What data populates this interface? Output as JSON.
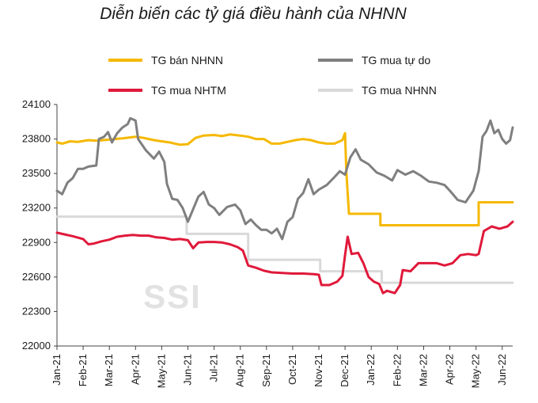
{
  "chart_data": {
    "type": "line",
    "title": "Diễn biến các tỷ giá điều hành của NHNN",
    "watermark": "SSI",
    "xlabel": "",
    "ylabel": "",
    "ylim": [
      22000,
      24100
    ],
    "yticks": [
      22000,
      22300,
      22600,
      22900,
      23200,
      23500,
      23800,
      24100
    ],
    "categories": [
      "Jan-21",
      "Feb-21",
      "Mar-21",
      "Apr-21",
      "May-21",
      "Jun-21",
      "Jul-21",
      "Aug-21",
      "Sep-21",
      "Oct-21",
      "Nov-21",
      "Dec-21",
      "Jan-22",
      "Feb-22",
      "Mar-22",
      "Apr-22",
      "May-22",
      "Jun-22"
    ],
    "legend": [
      {
        "name": "TG bán NHNN",
        "color": "#f5b800"
      },
      {
        "name": "TG mua tự do",
        "color": "#7f7f7f"
      },
      {
        "name": "TG mua NHTM",
        "color": "#e0193a"
      },
      {
        "name": "TG mua NHNN",
        "color": "#d9d9d9"
      }
    ],
    "series": [
      {
        "name": "TG mua NHNN",
        "color": "#d9d9d9",
        "step": true,
        "points": [
          [
            0,
            23125
          ],
          [
            4.95,
            23125
          ],
          [
            4.95,
            22975
          ],
          [
            7.3,
            22975
          ],
          [
            7.3,
            22750
          ],
          [
            10.05,
            22750
          ],
          [
            10.05,
            22650
          ],
          [
            12.4,
            22650
          ],
          [
            12.4,
            22550
          ],
          [
            17.4,
            22550
          ]
        ]
      },
      {
        "name": "TG bán NHNN",
        "color": "#f5b800",
        "points": [
          [
            0,
            23770
          ],
          [
            0.2,
            23760
          ],
          [
            0.5,
            23780
          ],
          [
            0.8,
            23775
          ],
          [
            1.2,
            23790
          ],
          [
            1.5,
            23785
          ],
          [
            2.0,
            23795
          ],
          [
            2.5,
            23805
          ],
          [
            3.0,
            23820
          ],
          [
            3.3,
            23810
          ],
          [
            3.7,
            23790
          ],
          [
            4.0,
            23780
          ],
          [
            4.3,
            23770
          ],
          [
            4.7,
            23750
          ],
          [
            5.0,
            23755
          ],
          [
            5.3,
            23810
          ],
          [
            5.6,
            23830
          ],
          [
            6.0,
            23835
          ],
          [
            6.3,
            23825
          ],
          [
            6.6,
            23840
          ],
          [
            7.0,
            23830
          ],
          [
            7.3,
            23820
          ],
          [
            7.6,
            23800
          ],
          [
            7.9,
            23800
          ],
          [
            8.2,
            23760
          ],
          [
            8.5,
            23760
          ],
          [
            8.8,
            23775
          ],
          [
            9.1,
            23790
          ],
          [
            9.4,
            23800
          ],
          [
            9.7,
            23790
          ],
          [
            10.0,
            23770
          ],
          [
            10.3,
            23760
          ],
          [
            10.6,
            23760
          ],
          [
            10.9,
            23790
          ],
          [
            11.0,
            23850
          ],
          [
            11.05,
            23510
          ],
          [
            11.15,
            23150
          ],
          [
            12.35,
            23150
          ],
          [
            12.35,
            23050
          ],
          [
            16.1,
            23050
          ],
          [
            16.1,
            23250
          ],
          [
            17.4,
            23250
          ]
        ]
      },
      {
        "name": "TG mua tự do",
        "color": "#7f7f7f",
        "points": [
          [
            0,
            23350
          ],
          [
            0.2,
            23320
          ],
          [
            0.4,
            23420
          ],
          [
            0.6,
            23460
          ],
          [
            0.8,
            23540
          ],
          [
            1.0,
            23540
          ],
          [
            1.2,
            23560
          ],
          [
            1.5,
            23570
          ],
          [
            1.6,
            23800
          ],
          [
            1.8,
            23820
          ],
          [
            1.95,
            23860
          ],
          [
            2.1,
            23770
          ],
          [
            2.3,
            23850
          ],
          [
            2.5,
            23900
          ],
          [
            2.7,
            23930
          ],
          [
            2.8,
            23980
          ],
          [
            3.0,
            23960
          ],
          [
            3.1,
            23800
          ],
          [
            3.4,
            23700
          ],
          [
            3.7,
            23630
          ],
          [
            3.9,
            23690
          ],
          [
            4.1,
            23600
          ],
          [
            4.2,
            23410
          ],
          [
            4.4,
            23280
          ],
          [
            4.6,
            23270
          ],
          [
            4.8,
            23200
          ],
          [
            5.0,
            23080
          ],
          [
            5.2,
            23190
          ],
          [
            5.4,
            23300
          ],
          [
            5.6,
            23340
          ],
          [
            5.8,
            23230
          ],
          [
            6.0,
            23200
          ],
          [
            6.2,
            23140
          ],
          [
            6.5,
            23210
          ],
          [
            6.8,
            23230
          ],
          [
            7.0,
            23180
          ],
          [
            7.2,
            23060
          ],
          [
            7.4,
            23100
          ],
          [
            7.6,
            23050
          ],
          [
            7.8,
            23010
          ],
          [
            8.0,
            23010
          ],
          [
            8.2,
            22980
          ],
          [
            8.4,
            23020
          ],
          [
            8.6,
            22930
          ],
          [
            8.8,
            23080
          ],
          [
            9.0,
            23120
          ],
          [
            9.2,
            23280
          ],
          [
            9.4,
            23330
          ],
          [
            9.6,
            23450
          ],
          [
            9.8,
            23320
          ],
          [
            10.0,
            23360
          ],
          [
            10.3,
            23400
          ],
          [
            10.6,
            23470
          ],
          [
            10.8,
            23520
          ],
          [
            11.0,
            23490
          ],
          [
            11.2,
            23640
          ],
          [
            11.4,
            23710
          ],
          [
            11.6,
            23620
          ],
          [
            11.9,
            23580
          ],
          [
            12.2,
            23510
          ],
          [
            12.5,
            23480
          ],
          [
            12.8,
            23440
          ],
          [
            13.0,
            23530
          ],
          [
            13.3,
            23490
          ],
          [
            13.6,
            23520
          ],
          [
            13.9,
            23480
          ],
          [
            14.2,
            23430
          ],
          [
            14.5,
            23420
          ],
          [
            14.8,
            23400
          ],
          [
            15.0,
            23350
          ],
          [
            15.3,
            23270
          ],
          [
            15.6,
            23250
          ],
          [
            15.9,
            23350
          ],
          [
            16.1,
            23520
          ],
          [
            16.25,
            23820
          ],
          [
            16.4,
            23870
          ],
          [
            16.55,
            23960
          ],
          [
            16.7,
            23850
          ],
          [
            16.85,
            23880
          ],
          [
            17.0,
            23800
          ],
          [
            17.15,
            23760
          ],
          [
            17.3,
            23790
          ],
          [
            17.4,
            23900
          ]
        ]
      },
      {
        "name": "TG mua NHTM",
        "color": "#e0193a",
        "points": [
          [
            0,
            22985
          ],
          [
            0.3,
            22970
          ],
          [
            0.6,
            22955
          ],
          [
            1.0,
            22930
          ],
          [
            1.2,
            22885
          ],
          [
            1.4,
            22890
          ],
          [
            1.7,
            22910
          ],
          [
            2.0,
            22925
          ],
          [
            2.3,
            22950
          ],
          [
            2.6,
            22960
          ],
          [
            2.9,
            22965
          ],
          [
            3.2,
            22960
          ],
          [
            3.5,
            22960
          ],
          [
            3.8,
            22945
          ],
          [
            4.1,
            22940
          ],
          [
            4.4,
            22925
          ],
          [
            4.7,
            22930
          ],
          [
            5.0,
            22920
          ],
          [
            5.2,
            22850
          ],
          [
            5.4,
            22900
          ],
          [
            5.7,
            22905
          ],
          [
            6.0,
            22905
          ],
          [
            6.3,
            22900
          ],
          [
            6.6,
            22885
          ],
          [
            6.9,
            22860
          ],
          [
            7.1,
            22830
          ],
          [
            7.3,
            22700
          ],
          [
            7.6,
            22680
          ],
          [
            7.9,
            22655
          ],
          [
            8.2,
            22640
          ],
          [
            8.6,
            22635
          ],
          [
            9.0,
            22630
          ],
          [
            9.4,
            22630
          ],
          [
            9.8,
            22625
          ],
          [
            10.0,
            22620
          ],
          [
            10.1,
            22530
          ],
          [
            10.4,
            22530
          ],
          [
            10.7,
            22560
          ],
          [
            10.9,
            22610
          ],
          [
            11.0,
            22790
          ],
          [
            11.1,
            22950
          ],
          [
            11.25,
            22800
          ],
          [
            11.5,
            22810
          ],
          [
            11.7,
            22720
          ],
          [
            11.9,
            22600
          ],
          [
            12.1,
            22560
          ],
          [
            12.3,
            22540
          ],
          [
            12.45,
            22460
          ],
          [
            12.6,
            22480
          ],
          [
            12.9,
            22460
          ],
          [
            13.1,
            22530
          ],
          [
            13.2,
            22660
          ],
          [
            13.5,
            22650
          ],
          [
            13.8,
            22720
          ],
          [
            14.1,
            22720
          ],
          [
            14.5,
            22720
          ],
          [
            14.8,
            22700
          ],
          [
            15.1,
            22720
          ],
          [
            15.4,
            22790
          ],
          [
            15.7,
            22800
          ],
          [
            16.0,
            22790
          ],
          [
            16.1,
            22800
          ],
          [
            16.3,
            23000
          ],
          [
            16.6,
            23040
          ],
          [
            16.9,
            23020
          ],
          [
            17.2,
            23040
          ],
          [
            17.4,
            23080
          ]
        ]
      }
    ]
  }
}
